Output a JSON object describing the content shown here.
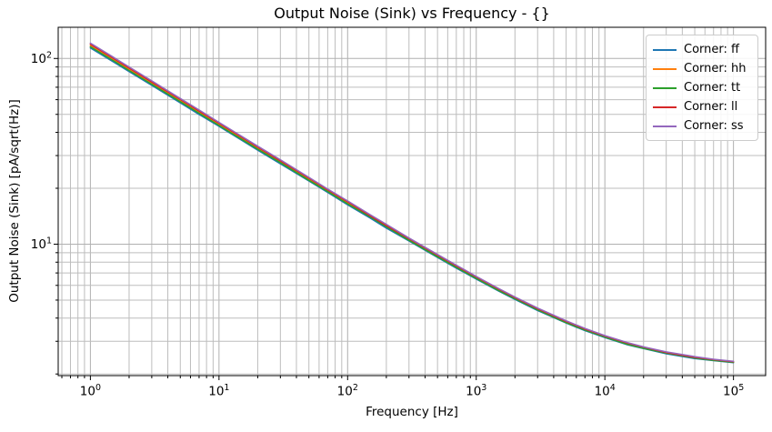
{
  "figure": {
    "background": "#ffffff",
    "text_color": "#000000",
    "grid_color_major": "#b0b0b0",
    "grid_color_minor": "#bdbdbd",
    "spine_color": "#000000"
  },
  "chart_data": {
    "type": "line",
    "title": "Output Noise (Sink) vs Frequency - {}",
    "xlabel": "Frequency [Hz]",
    "ylabel": "Output Noise (Sink) [pA/sqrt(Hz)]",
    "x_scale": "log",
    "y_scale": "log",
    "xlim": [
      0.562,
      177828
    ],
    "ylim": [
      1.96,
      147.2
    ],
    "x_tick_exponents": [
      0,
      1,
      2,
      3,
      4,
      5
    ],
    "y_tick_exponents": [
      1,
      2
    ],
    "grid": "both",
    "legend_position": "upper right",
    "x": [
      1,
      1.5,
      2,
      3,
      5,
      7,
      10,
      15,
      20,
      30,
      50,
      70,
      100,
      150,
      200,
      300,
      500,
      700,
      1000,
      1500,
      2000,
      3000,
      5000,
      7000,
      10000,
      15000,
      20000,
      30000,
      50000,
      70000,
      100000
    ],
    "series": [
      {
        "name": "Corner: ff",
        "corner": "ff",
        "color": "#1f77b4",
        "values": [
          114.0,
          96.0,
          85.0,
          71.6,
          57.7,
          50.0,
          43.1,
          36.3,
          32.1,
          27.1,
          21.9,
          19.0,
          16.3,
          13.8,
          12.2,
          10.4,
          8.48,
          7.43,
          6.49,
          5.58,
          5.04,
          4.39,
          3.76,
          3.42,
          3.14,
          2.87,
          2.74,
          2.57,
          2.42,
          2.36,
          2.3
        ]
      },
      {
        "name": "Corner: hh",
        "corner": "hh",
        "color": "#ff7f0e",
        "values": [
          117.5,
          98.9,
          87.5,
          73.7,
          59.3,
          51.4,
          44.2,
          37.2,
          32.9,
          27.8,
          22.4,
          19.4,
          16.7,
          14.1,
          12.5,
          10.6,
          8.64,
          7.57,
          6.6,
          5.67,
          5.12,
          4.46,
          3.81,
          3.47,
          3.18,
          2.91,
          2.77,
          2.6,
          2.45,
          2.38,
          2.32
        ]
      },
      {
        "name": "Corner: tt",
        "corner": "tt",
        "color": "#2ca02c",
        "values": [
          115.7,
          97.5,
          86.2,
          72.7,
          58.5,
          50.7,
          43.6,
          36.7,
          32.5,
          27.5,
          22.1,
          19.2,
          16.5,
          14.0,
          12.4,
          10.5,
          8.56,
          7.5,
          6.54,
          5.62,
          5.08,
          4.43,
          3.78,
          3.45,
          3.16,
          2.89,
          2.75,
          2.59,
          2.44,
          2.37,
          2.31
        ]
      },
      {
        "name": "Corner: ll",
        "corner": "ll",
        "color": "#d62728",
        "values": [
          119.3,
          100.3,
          88.8,
          74.7,
          60.1,
          52.1,
          44.8,
          37.7,
          33.3,
          28.1,
          22.7,
          19.6,
          16.9,
          14.2,
          12.6,
          10.7,
          8.72,
          7.64,
          6.66,
          5.72,
          5.16,
          4.49,
          3.84,
          3.49,
          3.2,
          2.93,
          2.79,
          2.61,
          2.46,
          2.39,
          2.33
        ]
      },
      {
        "name": "Corner: ss",
        "corner": "ss",
        "color": "#9467bd",
        "values": [
          121.0,
          101.8,
          90.0,
          75.8,
          60.9,
          52.8,
          45.3,
          38.1,
          33.7,
          28.5,
          22.9,
          19.8,
          17.1,
          14.4,
          12.8,
          10.8,
          8.8,
          7.71,
          6.71,
          5.76,
          5.2,
          4.53,
          3.87,
          3.52,
          3.22,
          2.95,
          2.8,
          2.63,
          2.48,
          2.4,
          2.34
        ]
      }
    ]
  }
}
